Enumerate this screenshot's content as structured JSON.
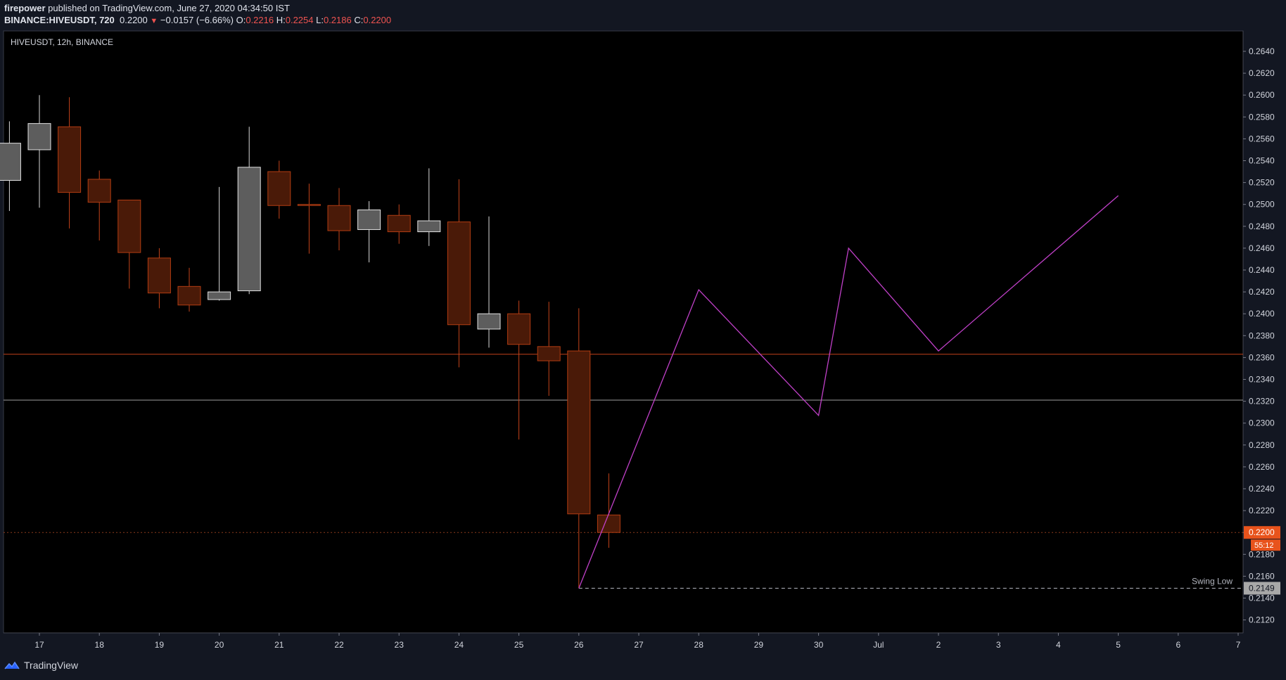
{
  "header": {
    "author": "firepower",
    "published": "published on TradingView.com, June 27, 2020 04:34:50 IST",
    "symbol_line": "BINANCE:HIVEUSDT, 720",
    "last": "0.2200",
    "change": "−0.0157 (−6.66%)",
    "o_label": "O:",
    "o_value": "0.2216",
    "h_label": "H:",
    "h_value": "0.2254",
    "l_label": "L:",
    "l_value": "0.2186",
    "c_label": "C:",
    "c_value": "0.2200"
  },
  "chart_title": "HIVEUSDT, 12h, BINANCE",
  "footer": {
    "brand": "TradingView",
    "icon": "tradingview-logo-icon"
  },
  "colors": {
    "background": "#131722",
    "plot_background": "#000000",
    "up_candle": "#5d5d5d",
    "down_candle": "#4a1a08",
    "down_border": "#b23c12",
    "resistance_line": "#c2401a",
    "support_line": "#9e9e9e",
    "projection": "#c040c8",
    "price_tag": "#e8531c"
  },
  "chart_data": {
    "type": "candlestick",
    "x_ticks": [
      "17",
      "18",
      "19",
      "20",
      "21",
      "22",
      "23",
      "24",
      "25",
      "26",
      "27",
      "28",
      "29",
      "30",
      "Jul",
      "2",
      "3",
      "4",
      "5",
      "6",
      "7"
    ],
    "ylim": [
      0.2107,
      0.2652
    ],
    "y_ticks": [
      "0.2120",
      "0.2140",
      "0.2160",
      "0.2180",
      "0.2200",
      "0.2220",
      "0.2240",
      "0.2260",
      "0.2280",
      "0.2300",
      "0.2320",
      "0.2340",
      "0.2360",
      "0.2380",
      "0.2400",
      "0.2420",
      "0.2440",
      "0.2460",
      "0.2480",
      "0.2500",
      "0.2520",
      "0.2540",
      "0.2560",
      "0.2580",
      "0.2600",
      "0.2620",
      "0.2640"
    ],
    "candles": [
      {
        "t": 16.5,
        "o": 0.2522,
        "h": 0.2576,
        "l": 0.2494,
        "c": 0.2556
      },
      {
        "t": 17.0,
        "o": 0.255,
        "h": 0.26,
        "l": 0.2497,
        "c": 0.2574
      },
      {
        "t": 17.5,
        "o": 0.2571,
        "h": 0.2598,
        "l": 0.2478,
        "c": 0.2511
      },
      {
        "t": 18.0,
        "o": 0.2523,
        "h": 0.2531,
        "l": 0.2467,
        "c": 0.2502
      },
      {
        "t": 18.5,
        "o": 0.2504,
        "h": 0.2504,
        "l": 0.2423,
        "c": 0.2456
      },
      {
        "t": 19.0,
        "o": 0.2451,
        "h": 0.246,
        "l": 0.2405,
        "c": 0.2419
      },
      {
        "t": 19.5,
        "o": 0.2425,
        "h": 0.2442,
        "l": 0.2402,
        "c": 0.2408
      },
      {
        "t": 20.0,
        "o": 0.2413,
        "h": 0.2516,
        "l": 0.2412,
        "c": 0.242
      },
      {
        "t": 20.5,
        "o": 0.2421,
        "h": 0.2571,
        "l": 0.2418,
        "c": 0.2534
      },
      {
        "t": 21.0,
        "o": 0.253,
        "h": 0.254,
        "l": 0.2487,
        "c": 0.2499
      },
      {
        "t": 21.5,
        "o": 0.25,
        "h": 0.2519,
        "l": 0.2455,
        "c": 0.2499
      },
      {
        "t": 22.0,
        "o": 0.2499,
        "h": 0.2515,
        "l": 0.2458,
        "c": 0.2476
      },
      {
        "t": 22.5,
        "o": 0.2477,
        "h": 0.2503,
        "l": 0.2447,
        "c": 0.2495
      },
      {
        "t": 23.0,
        "o": 0.249,
        "h": 0.25,
        "l": 0.2464,
        "c": 0.2475
      },
      {
        "t": 23.5,
        "o": 0.2475,
        "h": 0.2533,
        "l": 0.2462,
        "c": 0.2485
      },
      {
        "t": 24.0,
        "o": 0.2484,
        "h": 0.2523,
        "l": 0.2351,
        "c": 0.239
      },
      {
        "t": 24.5,
        "o": 0.2386,
        "h": 0.2489,
        "l": 0.2369,
        "c": 0.24
      },
      {
        "t": 25.0,
        "o": 0.24,
        "h": 0.2412,
        "l": 0.2285,
        "c": 0.2372
      },
      {
        "t": 25.5,
        "o": 0.237,
        "h": 0.2411,
        "l": 0.2325,
        "c": 0.2357
      },
      {
        "t": 26.0,
        "o": 0.2366,
        "h": 0.2405,
        "l": 0.2149,
        "c": 0.2217
      },
      {
        "t": 26.5,
        "o": 0.2216,
        "h": 0.2254,
        "l": 0.2186,
        "c": 0.22
      }
    ],
    "horizontal_lines": [
      {
        "name": "resistance",
        "y": 0.2363
      },
      {
        "name": "support",
        "y": 0.2321
      },
      {
        "name": "last-price",
        "y": 0.22
      }
    ],
    "swing_low": {
      "label": "Swing Low",
      "value": "0.2149",
      "y": 0.2149,
      "from_t": 26.0
    },
    "current_price_tag": {
      "value": "0.2200",
      "countdown": "55:12"
    },
    "projection_path": [
      {
        "t": 26.0,
        "y": 0.2149
      },
      {
        "t": 28.0,
        "y": 0.2422
      },
      {
        "t": 30.0,
        "y": 0.2307
      },
      {
        "t": 30.5,
        "y": 0.246
      },
      {
        "t": 32.0,
        "y": 0.2366
      },
      {
        "t": 35.0,
        "y": 0.2508
      }
    ]
  }
}
